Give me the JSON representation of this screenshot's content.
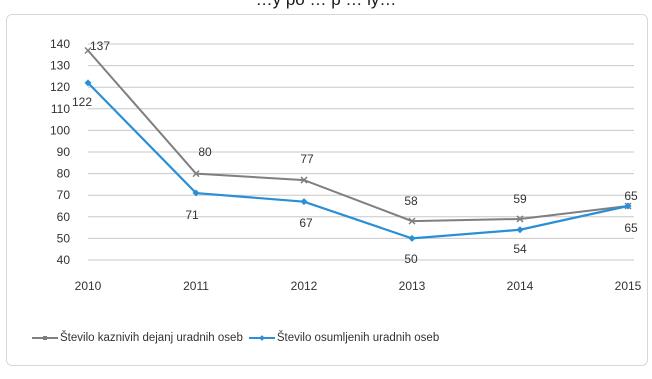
{
  "page": {
    "title": "…y po … p … ly…"
  },
  "colors": {
    "series1": "#7f7f7f",
    "series2": "#2a8fd6",
    "grid": "#c8c8c8"
  },
  "chart_data": {
    "type": "line",
    "categories": [
      "2010",
      "2011",
      "2012",
      "2013",
      "2014",
      "2015"
    ],
    "ylim": [
      40,
      140
    ],
    "yticks": [
      40,
      50,
      60,
      70,
      80,
      90,
      100,
      110,
      120,
      130,
      140
    ],
    "grid": true,
    "legend_position": "bottom",
    "series": [
      {
        "name": "Število kaznivih dejanj uradnih oseb",
        "values": [
          137,
          80,
          77,
          58,
          59,
          65
        ],
        "label_position": "above"
      },
      {
        "name": "Število osumljenih uradnih oseb",
        "values": [
          122,
          71,
          67,
          50,
          54,
          65
        ],
        "label_position": "below"
      }
    ]
  }
}
